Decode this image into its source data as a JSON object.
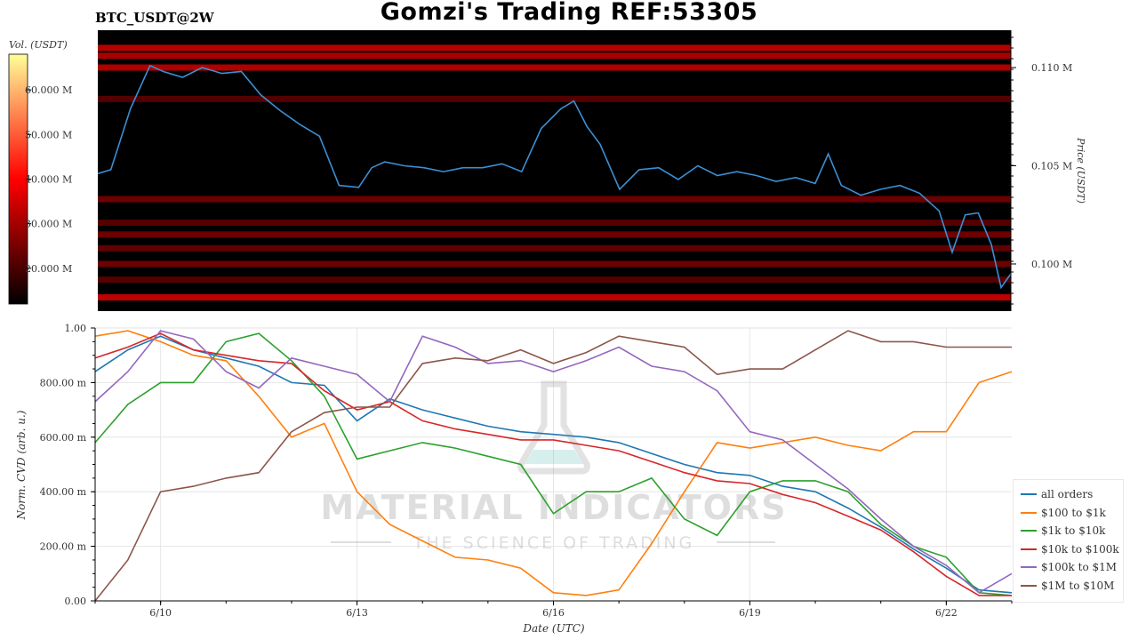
{
  "header": {
    "title": "Gomzi's Trading REF:53305",
    "pair": "BTC_USDT@2W"
  },
  "chart_data": [
    {
      "type": "heatmap",
      "colorbar": {
        "label": "Vol. (USDT)",
        "ticks": [
          "20.000 M",
          "30.000 M",
          "40.000 M",
          "50.000 M",
          "60.000 M"
        ],
        "tick_values": [
          20,
          30,
          40,
          50,
          60
        ],
        "range": [
          12,
          68
        ],
        "colors": [
          "#000000",
          "#ff0000",
          "#ffff99"
        ]
      },
      "ylabel": "Price (USDT)",
      "y_ticks": [
        "0.100 M",
        "0.105 M",
        "0.110 M"
      ],
      "y_tick_values": [
        100000,
        105000,
        110000
      ],
      "ylim": [
        97600,
        111900
      ],
      "xlim": [
        0,
        14
      ],
      "price_series": {
        "name": "BTC price",
        "color": "#3b8fd4",
        "x": [
          0,
          0.2,
          0.5,
          0.8,
          1.0,
          1.3,
          1.6,
          1.9,
          2.2,
          2.5,
          2.8,
          3.1,
          3.4,
          3.7,
          4.0,
          4.2,
          4.4,
          4.7,
          5.0,
          5.3,
          5.6,
          5.9,
          6.2,
          6.5,
          6.8,
          7.1,
          7.3,
          7.5,
          7.7,
          8.0,
          8.3,
          8.6,
          8.9,
          9.2,
          9.5,
          9.8,
          10.1,
          10.4,
          10.7,
          11.0,
          11.2,
          11.4,
          11.7,
          12.0,
          12.3,
          12.6,
          12.9,
          13.1,
          13.3,
          13.5,
          13.7,
          13.85,
          14.0
        ],
        "y": [
          104600,
          104800,
          107900,
          110100,
          109800,
          109500,
          110000,
          109700,
          109800,
          108600,
          107800,
          107100,
          106500,
          104000,
          103900,
          104900,
          105200,
          105000,
          104900,
          104700,
          104900,
          104900,
          105100,
          104700,
          106900,
          107900,
          108300,
          107000,
          106100,
          103800,
          104800,
          104900,
          104300,
          105000,
          104500,
          104700,
          104500,
          104200,
          104400,
          104100,
          105600,
          104000,
          103500,
          103800,
          104000,
          103600,
          102700,
          100600,
          102500,
          102600,
          101000,
          98800,
          99500
        ]
      },
      "liquidity_bands": [
        {
          "price": 111000,
          "intensity": 0.75
        },
        {
          "price": 110600,
          "intensity": 0.7
        },
        {
          "price": 110000,
          "intensity": 0.72
        },
        {
          "price": 108400,
          "intensity": 0.35
        },
        {
          "price": 103300,
          "intensity": 0.45
        },
        {
          "price": 102100,
          "intensity": 0.35
        },
        {
          "price": 101500,
          "intensity": 0.45
        },
        {
          "price": 100800,
          "intensity": 0.4
        },
        {
          "price": 100000,
          "intensity": 0.45
        },
        {
          "price": 99200,
          "intensity": 0.35
        },
        {
          "price": 98300,
          "intensity": 0.78
        }
      ]
    },
    {
      "type": "line",
      "xlabel": "Date (UTC)",
      "ylabel": "Norm. CVD (arb. u.)",
      "x_ticks": [
        "6/10",
        "6/13",
        "6/16",
        "6/19",
        "6/22"
      ],
      "x_tick_values": [
        1,
        4,
        7,
        10,
        13
      ],
      "xlim": [
        0,
        14
      ],
      "y_ticks": [
        "0.00",
        "200.00 m",
        "400.00 m",
        "600.00 m",
        "800.00 m",
        "1.00"
      ],
      "y_tick_values": [
        0,
        0.2,
        0.4,
        0.6,
        0.8,
        1.0
      ],
      "ylim": [
        0,
        1
      ],
      "grid": true,
      "legend": "right",
      "x": [
        0,
        0.5,
        1.0,
        1.5,
        2.0,
        2.5,
        3.0,
        3.5,
        4.0,
        4.5,
        5.0,
        5.5,
        6.0,
        6.5,
        7.0,
        7.5,
        8.0,
        8.5,
        9.0,
        9.5,
        10.0,
        10.5,
        11.0,
        11.5,
        12.0,
        12.5,
        13.0,
        13.5,
        14.0
      ],
      "series": [
        {
          "name": "all orders",
          "color": "#1f77b4",
          "values": [
            0.84,
            0.92,
            0.97,
            0.92,
            0.89,
            0.86,
            0.8,
            0.79,
            0.66,
            0.74,
            0.7,
            0.67,
            0.64,
            0.62,
            0.61,
            0.6,
            0.58,
            0.54,
            0.5,
            0.47,
            0.46,
            0.42,
            0.4,
            0.34,
            0.27,
            0.19,
            0.12,
            0.04,
            0.03
          ]
        },
        {
          "name": "$100 to $1k",
          "color": "#ff7f0e",
          "values": [
            0.97,
            0.99,
            0.95,
            0.9,
            0.88,
            0.75,
            0.6,
            0.65,
            0.4,
            0.28,
            0.22,
            0.16,
            0.15,
            0.12,
            0.03,
            0.02,
            0.04,
            0.21,
            0.4,
            0.58,
            0.56,
            0.58,
            0.6,
            0.57,
            0.55,
            0.62,
            0.62,
            0.8,
            0.84
          ]
        },
        {
          "name": "$1k to $10k",
          "color": "#2ca02c",
          "values": [
            0.58,
            0.72,
            0.8,
            0.8,
            0.95,
            0.98,
            0.88,
            0.75,
            0.52,
            0.55,
            0.58,
            0.56,
            0.53,
            0.5,
            0.32,
            0.4,
            0.4,
            0.45,
            0.3,
            0.24,
            0.4,
            0.44,
            0.44,
            0.4,
            0.28,
            0.2,
            0.16,
            0.03,
            0.02
          ]
        },
        {
          "name": "$10k to $100k",
          "color": "#d62728",
          "values": [
            0.89,
            0.93,
            0.98,
            0.92,
            0.9,
            0.88,
            0.87,
            0.77,
            0.7,
            0.73,
            0.66,
            0.63,
            0.61,
            0.59,
            0.59,
            0.57,
            0.55,
            0.51,
            0.47,
            0.44,
            0.43,
            0.39,
            0.36,
            0.31,
            0.26,
            0.18,
            0.09,
            0.02,
            0.02
          ]
        },
        {
          "name": "$100k to $1M",
          "color": "#9467bd",
          "values": [
            0.73,
            0.84,
            0.99,
            0.96,
            0.84,
            0.78,
            0.89,
            0.86,
            0.83,
            0.73,
            0.97,
            0.93,
            0.87,
            0.88,
            0.84,
            0.88,
            0.93,
            0.86,
            0.84,
            0.77,
            0.62,
            0.59,
            0.5,
            0.41,
            0.3,
            0.2,
            0.13,
            0.03,
            0.1
          ]
        },
        {
          "name": "$1M to $10M",
          "color": "#8c564b",
          "values": [
            0.0,
            0.15,
            0.4,
            0.42,
            0.45,
            0.47,
            0.62,
            0.69,
            0.71,
            0.71,
            0.87,
            0.89,
            0.88,
            0.92,
            0.87,
            0.91,
            0.97,
            0.95,
            0.93,
            0.83,
            0.85,
            0.85,
            0.92,
            0.99,
            0.95,
            0.95,
            0.93,
            0.93,
            0.93
          ]
        }
      ]
    }
  ],
  "watermark": {
    "brand": "MATERIAL INDICATORS",
    "tagline": "THE SCIENCE OF TRADING"
  }
}
